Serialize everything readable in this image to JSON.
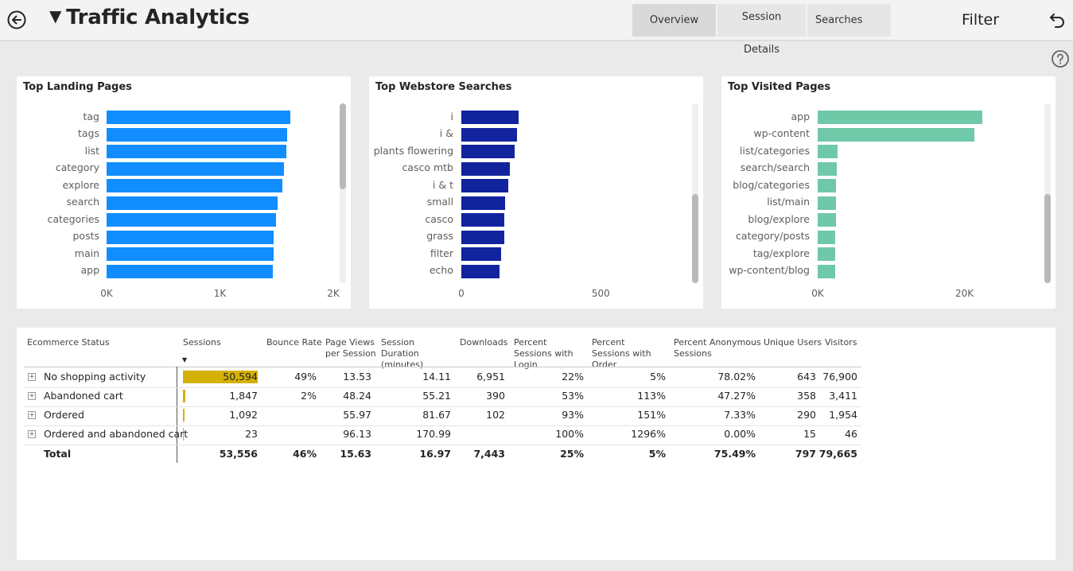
{
  "header": {
    "title": "Traffic Analytics",
    "tabs": [
      {
        "label": "Overview",
        "active": true
      },
      {
        "label": "Session Details",
        "active": false
      },
      {
        "label": "Searches",
        "active": false
      }
    ],
    "filter_label": "Filter"
  },
  "charts": {
    "landing": {
      "title": "Top Landing Pages",
      "color": "#118dff",
      "categories": [
        "tag",
        "tags",
        "list",
        "category",
        "explore",
        "search",
        "categories",
        "posts",
        "main",
        "app"
      ],
      "values": [
        1620,
        1590,
        1585,
        1565,
        1550,
        1510,
        1495,
        1475,
        1475,
        1470
      ],
      "ticks": [
        "0K",
        "1K",
        "2K"
      ],
      "max": 2000
    },
    "searches": {
      "title": "Top Webstore Searches",
      "color": "#12239e",
      "categories": [
        "i",
        "i &",
        "plants flowering",
        "casco mtb",
        "i & t",
        "small",
        "casco",
        "grass",
        "filter",
        "echo"
      ],
      "values": [
        205,
        200,
        190,
        173,
        168,
        158,
        155,
        155,
        142,
        138
      ],
      "ticks": [
        "0",
        "500"
      ],
      "max": 850
    },
    "visited": {
      "title": "Top Visited Pages",
      "color": "#6fc8a8",
      "categories": [
        "app",
        "wp-content",
        "list/categories",
        "search/search",
        "blog/categories",
        "list/main",
        "blog/explore",
        "category/posts",
        "tag/explore",
        "wp-content/blog"
      ],
      "values": [
        22400,
        21400,
        2700,
        2600,
        2500,
        2500,
        2450,
        2400,
        2400,
        2350
      ],
      "ticks": [
        "0K",
        "20K"
      ],
      "max": 31000
    }
  },
  "table": {
    "headers": [
      "Ecommerce Status",
      "Sessions",
      "Bounce Rate",
      "Page Views per Session",
      "Session Duration (minutes)",
      "Downloads",
      "Percent Sessions with Login",
      "Percent Sessions with Order",
      "Percent Anonymous Sessions",
      "Unique Users",
      "Visitors"
    ],
    "rows": [
      {
        "status": "No shopping activity",
        "sessions": "50,594",
        "sessions_value": 50594,
        "bounce": "49%",
        "pv": "13.53",
        "dur": "14.11",
        "dl": "6,951",
        "login": "22%",
        "order": "5%",
        "anon": "78.02%",
        "unique": "643",
        "visitors": "76,900"
      },
      {
        "status": "Abandoned cart",
        "sessions": "1,847",
        "sessions_value": 1847,
        "bounce": "2%",
        "pv": "48.24",
        "dur": "55.21",
        "dl": "390",
        "login": "53%",
        "order": "113%",
        "anon": "47.27%",
        "unique": "358",
        "visitors": "3,411"
      },
      {
        "status": "Ordered",
        "sessions": "1,092",
        "sessions_value": 1092,
        "bounce": "",
        "pv": "55.97",
        "dur": "81.67",
        "dl": "102",
        "login": "93%",
        "order": "151%",
        "anon": "7.33%",
        "unique": "290",
        "visitors": "1,954"
      },
      {
        "status": "Ordered and abandoned cart",
        "sessions": "23",
        "sessions_value": 23,
        "bounce": "",
        "pv": "96.13",
        "dur": "170.99",
        "dl": "",
        "login": "100%",
        "order": "1296%",
        "anon": "0.00%",
        "unique": "15",
        "visitors": "46"
      }
    ],
    "total": {
      "status": "Total",
      "sessions": "53,556",
      "bounce": "46%",
      "pv": "15.63",
      "dur": "16.97",
      "dl": "7,443",
      "login": "25%",
      "order": "5%",
      "anon": "75.49%",
      "unique": "797",
      "visitors": "79,665"
    },
    "databar_color": "#d4b106"
  }
}
